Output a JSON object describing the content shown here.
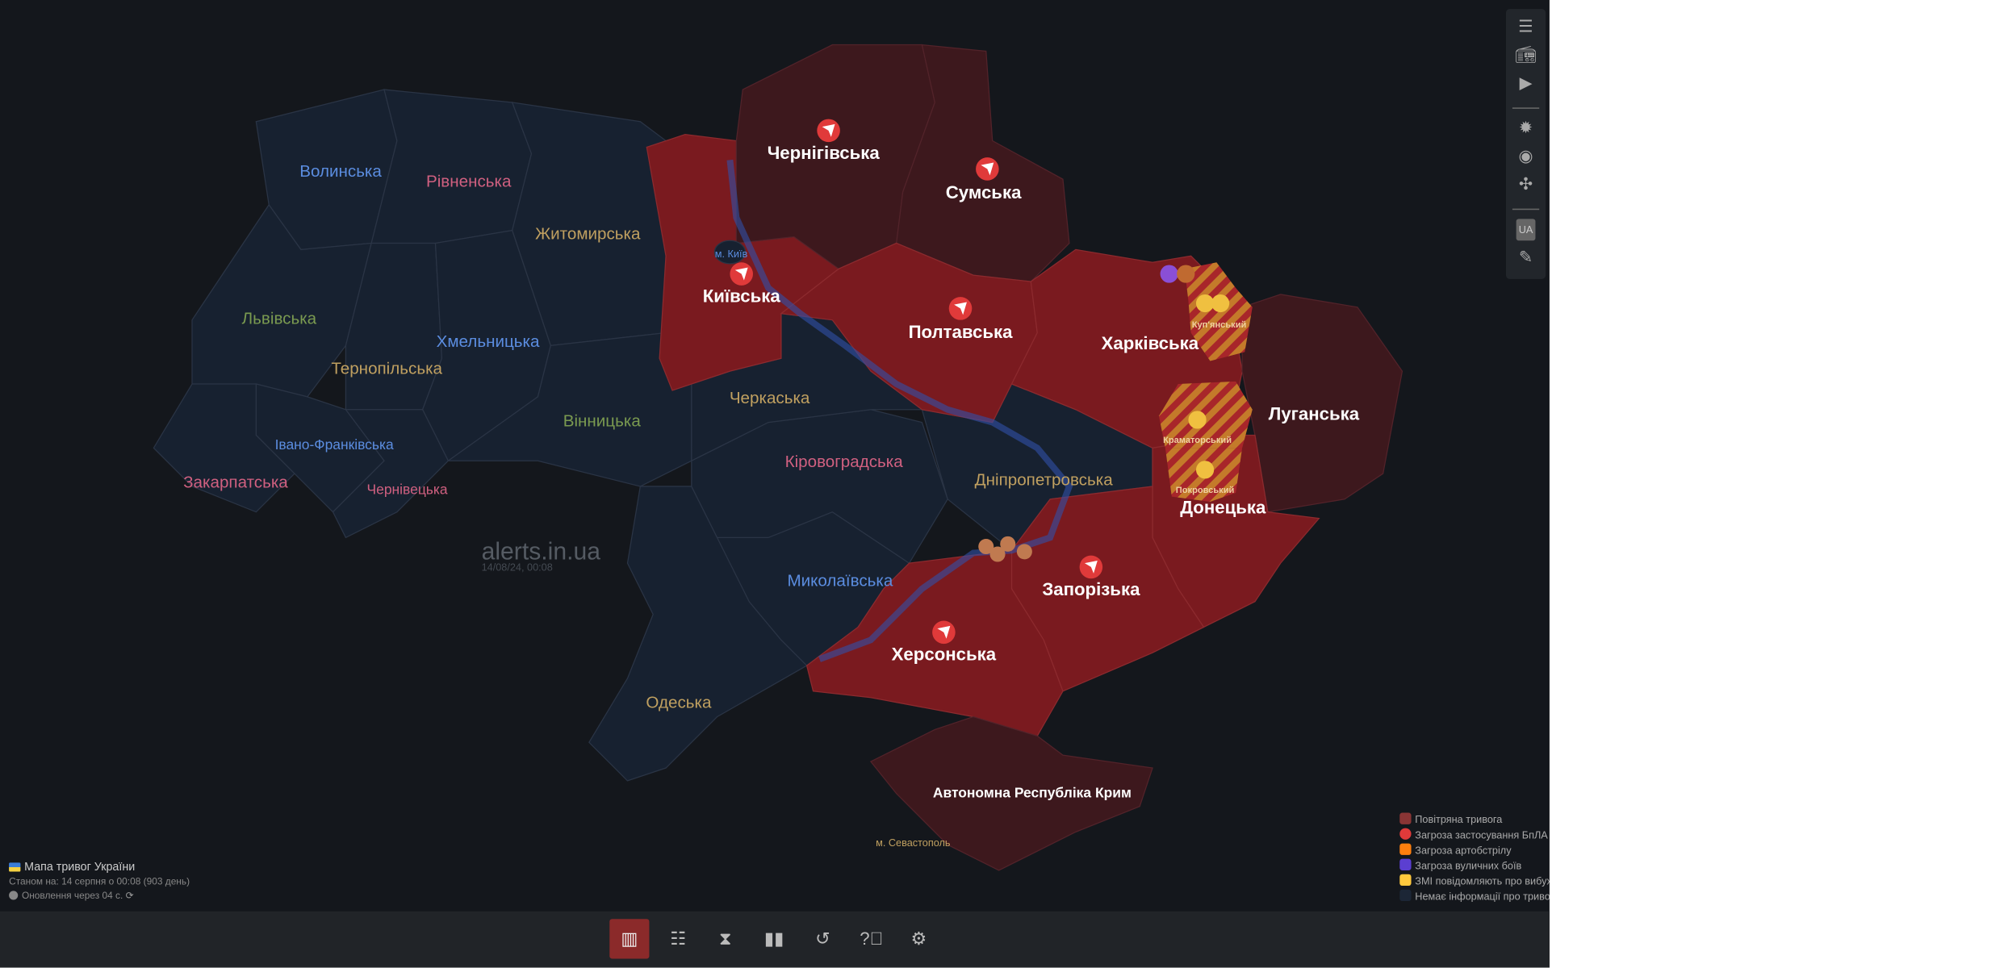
{
  "colors": {
    "background": "#14171c",
    "no_info": "#172130",
    "air_alert": "#7a1a1f",
    "alert_long": "#3d181d",
    "drone": "#e03a3a",
    "artillery": "#ff7f0e",
    "street_fights": "#5b3fd1",
    "explosions": "#ffc83d",
    "active_nav": "#8b2a2a"
  },
  "map": {
    "regions": {
      "volynska": "Волинська",
      "rivnenska": "Рівненська",
      "zhytomyrska": "Житомирська",
      "lvivska": "Львівська",
      "ternopilska": "Тернопільська",
      "khmelnytska": "Хмельницька",
      "vinnytska": "Вінницька",
      "ivano_frankivska": "Івано-Франківська",
      "zakarpatska": "Закарпатська",
      "chernivetska": "Чернівецька",
      "kyivska": "Київська",
      "kyiv_city": "м. Київ",
      "chernihivska": "Чернігівська",
      "sumska": "Сумська",
      "poltavska": "Полтавська",
      "kharkivska": "Харківська",
      "luhanska": "Луганська",
      "donetska": "Донецька",
      "zaporizka": "Запорізька",
      "khersonska": "Херсонська",
      "crimea": "Автономна Республіка Крим",
      "sevastopol": "м. Севастополь",
      "mykolaivska": "Миколаївська",
      "odeska": "Одеська",
      "kirovohradska": "Кіровоградська",
      "cherkaska": "Черкаська",
      "dnipropetrovska": "Дніпропетровська"
    },
    "districts": {
      "kupianskyi": "Куп'янський",
      "kramatorskyi": "Краматорський",
      "pokrovskyi": "Покровський"
    },
    "watermark": "alerts.in.ua",
    "watermark_date": "14/08/24, 00:08"
  },
  "info": {
    "title": "Мапа тривог України",
    "status": "Станом на: 14 серпня о 00:08 (903 день)",
    "update": "Оновлення через 04 с."
  },
  "legend": [
    {
      "label": "Повітряна тривога",
      "color": "#8a3535"
    },
    {
      "label": "Загроза застосування БпЛА",
      "color": "#e03a3a"
    },
    {
      "label": "Загроза артобстрілу",
      "color": "#ff7f0e"
    },
    {
      "label": "Загроза вуличних боїв",
      "color": "#5b3fd1"
    },
    {
      "label": "ЗМІ повідомляють про вибухи",
      "color": "#ffc83d"
    },
    {
      "label": "Немає інформації про тривогу",
      "color": "#1c2636"
    }
  ],
  "toolbar": {
    "lang": "UA",
    "icons": [
      "menu-icon",
      "radio-icon",
      "youtube-icon",
      "brightness-icon",
      "camera-icon",
      "fullscreen-icon",
      "language-icon",
      "pencil-icon"
    ]
  },
  "bottom_nav": {
    "items": [
      "map",
      "list",
      "timer",
      "stats",
      "history",
      "help",
      "settings"
    ],
    "active": "map"
  }
}
